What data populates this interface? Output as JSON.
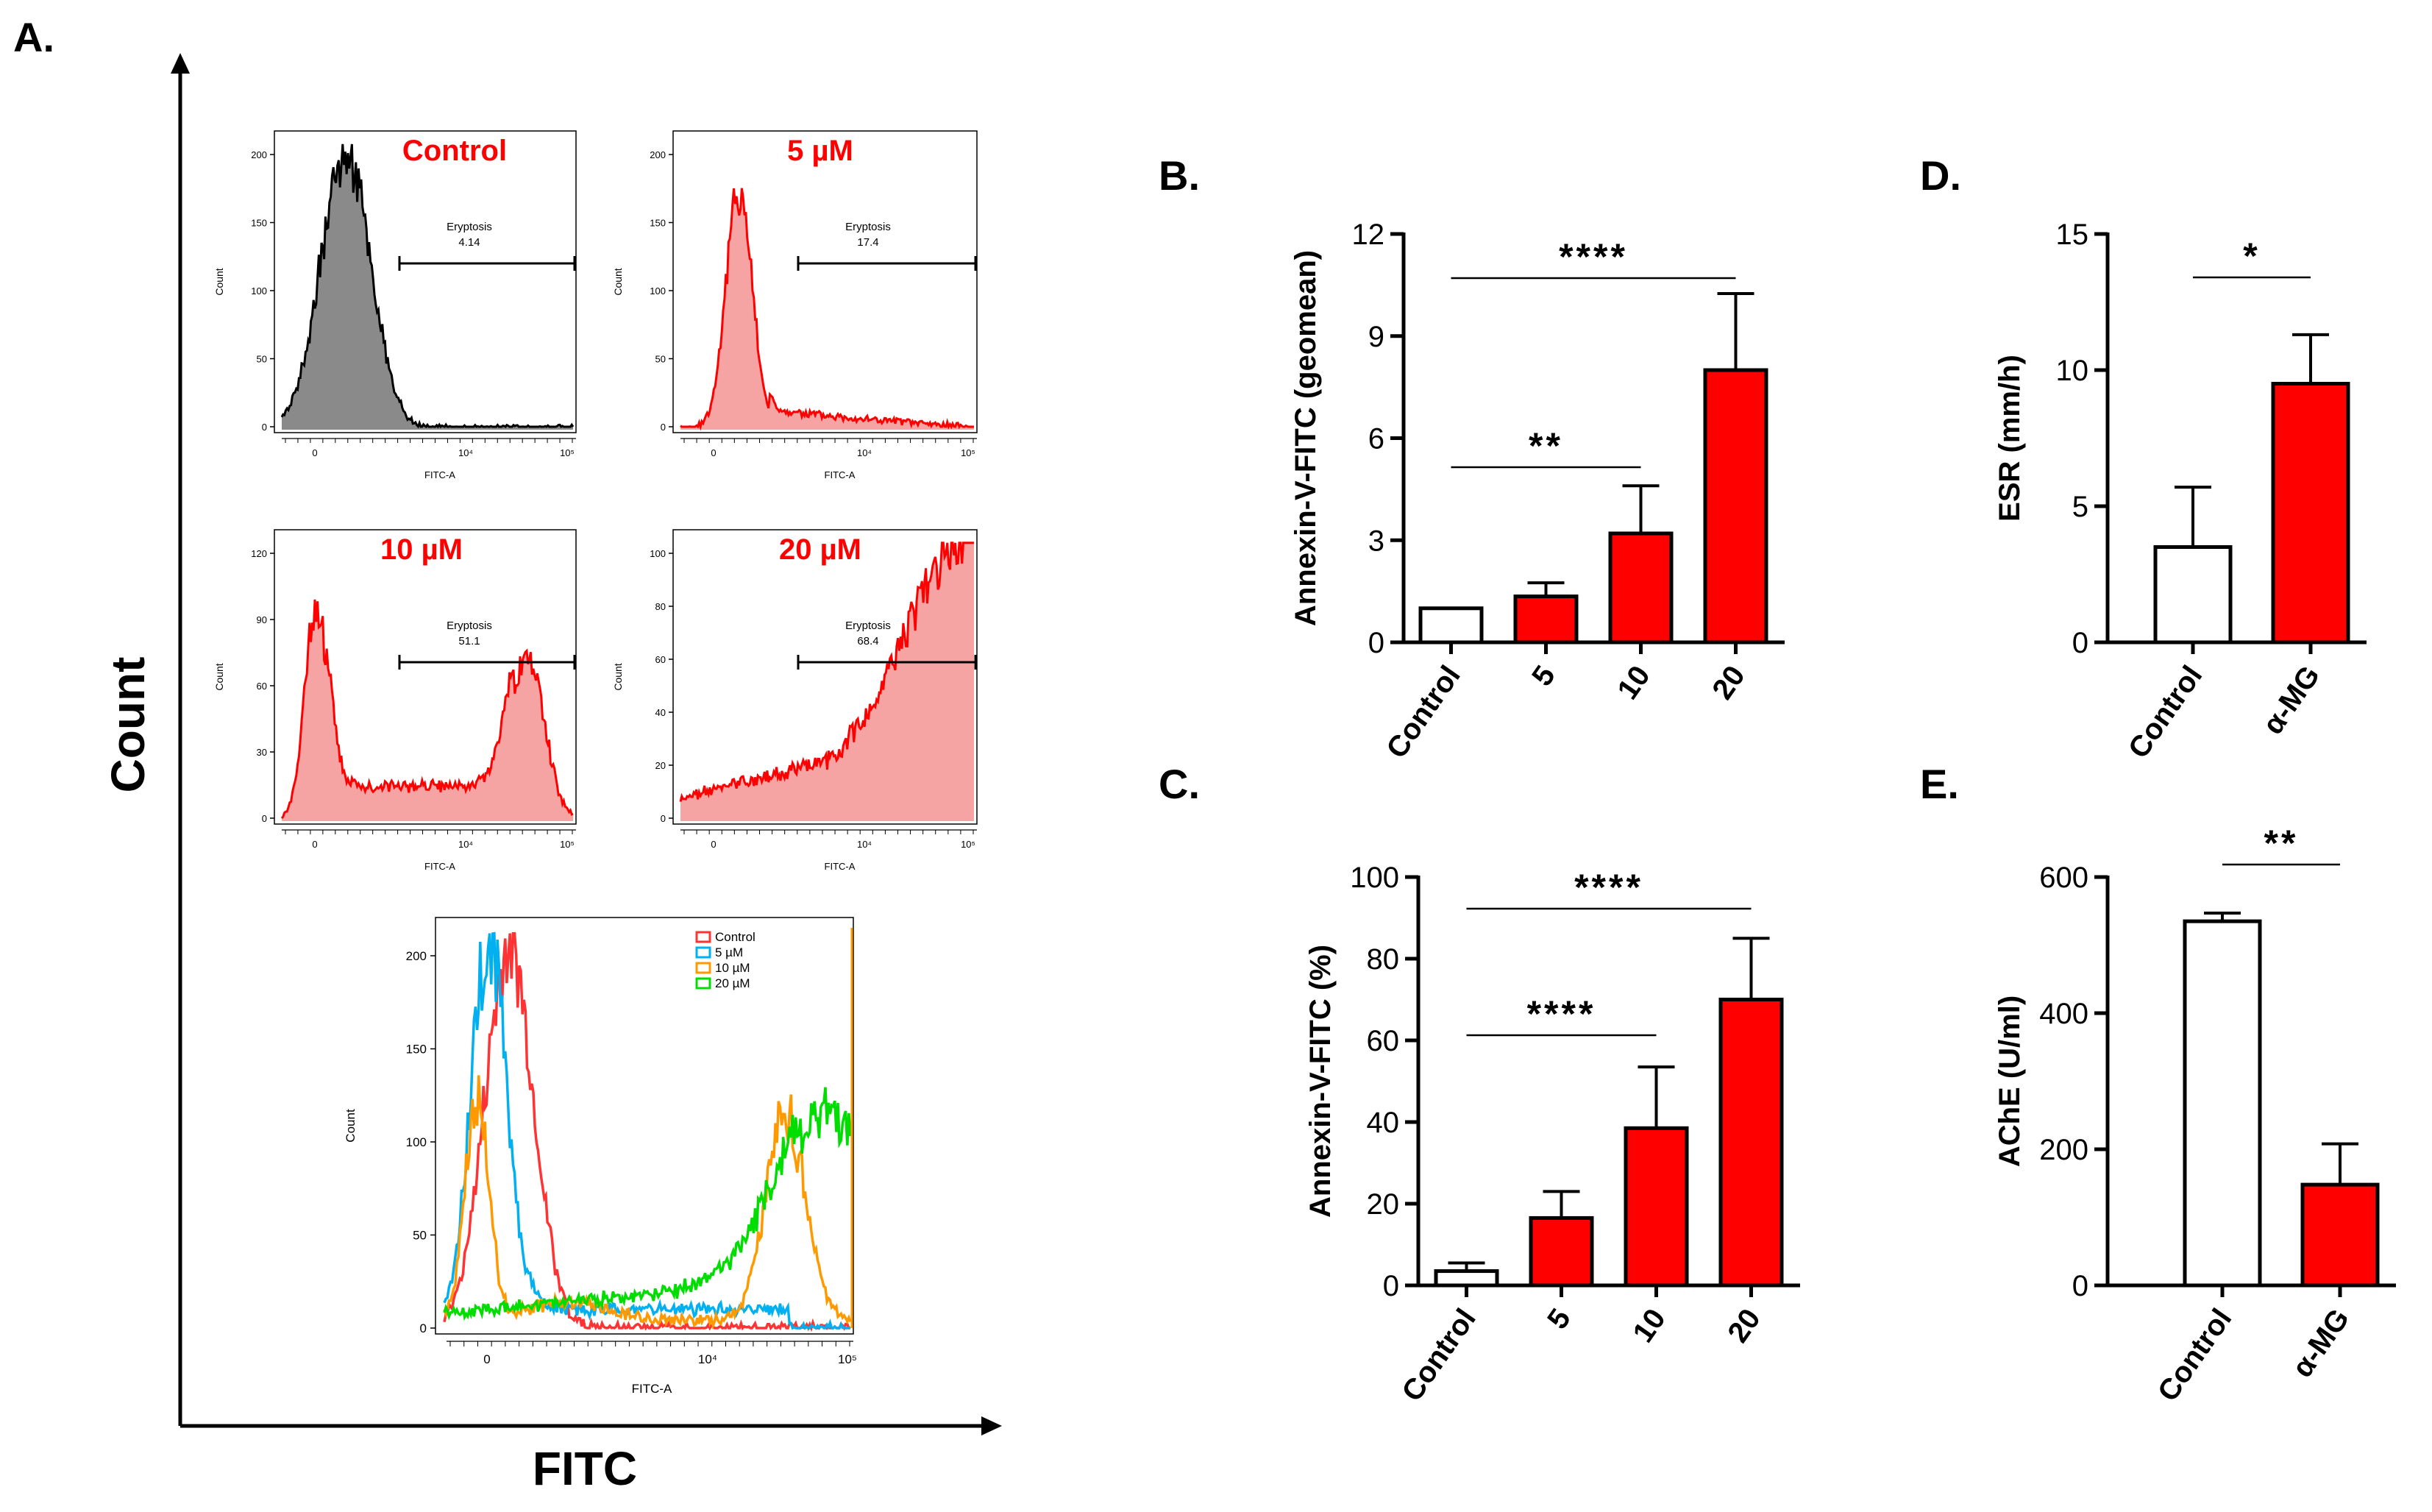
{
  "panel_labels": {
    "a": "A.",
    "b": "B.",
    "c": "C.",
    "d": "D.",
    "e": "E."
  },
  "panel_a": {
    "y_title": "Count",
    "x_title": "FITC",
    "histograms": [
      {
        "title": "Control",
        "gate_label": "Eryptosis",
        "gate_value": "4.14",
        "y_ticks": [
          "0",
          "50",
          "100",
          "150",
          "200"
        ],
        "y_label": "Count",
        "x_label": "FITC-A",
        "x_ticks": [
          "0",
          "10⁴",
          "10⁵"
        ],
        "fill": "#8a8a8a",
        "stroke": "#000000"
      },
      {
        "title": "5 µM",
        "gate_label": "Eryptosis",
        "gate_value": "17.4",
        "y_ticks": [
          "0",
          "50",
          "100",
          "150",
          "200"
        ],
        "y_label": "Count",
        "x_label": "FITC-A",
        "x_ticks": [
          "0",
          "10⁴",
          "10⁵"
        ],
        "fill": "#f6a3a3",
        "stroke": "#ff0000"
      },
      {
        "title": "10 µM",
        "gate_label": "Eryptosis",
        "gate_value": "51.1",
        "y_ticks": [
          "0",
          "30",
          "60",
          "90",
          "120"
        ],
        "y_label": "Count",
        "x_label": "FITC-A",
        "x_ticks": [
          "0",
          "10⁴",
          "10⁵"
        ],
        "fill": "#f6a3a3",
        "stroke": "#ff0000"
      },
      {
        "title": "20 µM",
        "gate_label": "Eryptosis",
        "gate_value": "68.4",
        "y_ticks": [
          "0",
          "20",
          "40",
          "60",
          "80",
          "100"
        ],
        "y_label": "Count",
        "x_label": "FITC-A",
        "x_ticks": [
          "0",
          "10⁴",
          "10⁵"
        ],
        "fill": "#f6a3a3",
        "stroke": "#ff0000"
      }
    ],
    "overlay": {
      "y_label": "Count",
      "x_label": "FITC-A",
      "y_ticks": [
        "0",
        "50",
        "100",
        "150",
        "200"
      ],
      "x_ticks": [
        "0",
        "10⁴",
        "10⁵"
      ],
      "legend": [
        {
          "name": "Control",
          "color": "#ff3333"
        },
        {
          "name": "5 µM",
          "color": "#00b0f0"
        },
        {
          "name": "10 µM",
          "color": "#ff9900"
        },
        {
          "name": "20 µM",
          "color": "#00dd00"
        }
      ]
    }
  },
  "chart_data": [
    {
      "id": "B",
      "type": "bar",
      "title": "",
      "categories": [
        "Control",
        "5",
        "10",
        "20"
      ],
      "values": [
        1.0,
        1.35,
        3.2,
        8.0
      ],
      "errors": [
        0.0,
        0.4,
        1.4,
        2.25
      ],
      "colors": [
        "#ffffff",
        "#ff0000",
        "#ff0000",
        "#ff0000"
      ],
      "ylabel": "Annexin-V-FITC (geomean)",
      "xlabel": "",
      "ylim": [
        0,
        12
      ],
      "yticks": [
        0,
        3,
        6,
        9,
        12
      ],
      "significance": [
        {
          "from": 0,
          "to": 3,
          "label": "****"
        },
        {
          "from": 0,
          "to": 2,
          "label": "**"
        }
      ]
    },
    {
      "id": "C",
      "type": "bar",
      "title": "",
      "categories": [
        "Control",
        "5",
        "10",
        "20"
      ],
      "values": [
        3.5,
        16.5,
        38.5,
        70.0
      ],
      "errors": [
        2.0,
        6.5,
        15.0,
        15.0
      ],
      "colors": [
        "#ffffff",
        "#ff0000",
        "#ff0000",
        "#ff0000"
      ],
      "ylabel": "Annexin-V-FITC (%)",
      "xlabel": "",
      "ylim": [
        0,
        100
      ],
      "yticks": [
        0,
        20,
        40,
        60,
        80,
        100
      ],
      "significance": [
        {
          "from": 0,
          "to": 3,
          "label": "****"
        },
        {
          "from": 0,
          "to": 2,
          "label": "****"
        }
      ]
    },
    {
      "id": "D",
      "type": "bar",
      "title": "",
      "categories": [
        "Control",
        "α-MG"
      ],
      "values": [
        3.5,
        9.5
      ],
      "errors": [
        2.2,
        1.8
      ],
      "colors": [
        "#ffffff",
        "#ff0000"
      ],
      "ylabel": "ESR (mm/h)",
      "xlabel": "",
      "ylim": [
        0,
        15
      ],
      "yticks": [
        0,
        5,
        10,
        15
      ],
      "significance": [
        {
          "from": 0,
          "to": 1,
          "label": "*"
        }
      ]
    },
    {
      "id": "E",
      "type": "bar",
      "title": "",
      "categories": [
        "Control",
        "α-MG"
      ],
      "values": [
        535,
        148
      ],
      "errors": [
        12,
        60
      ],
      "colors": [
        "#ffffff",
        "#ff0000"
      ],
      "ylabel": "AChE (U/ml)",
      "xlabel": "",
      "ylim": [
        0,
        600
      ],
      "yticks": [
        0,
        200,
        400,
        600
      ],
      "significance": [
        {
          "from": 0,
          "to": 1,
          "label": "**"
        }
      ]
    }
  ]
}
